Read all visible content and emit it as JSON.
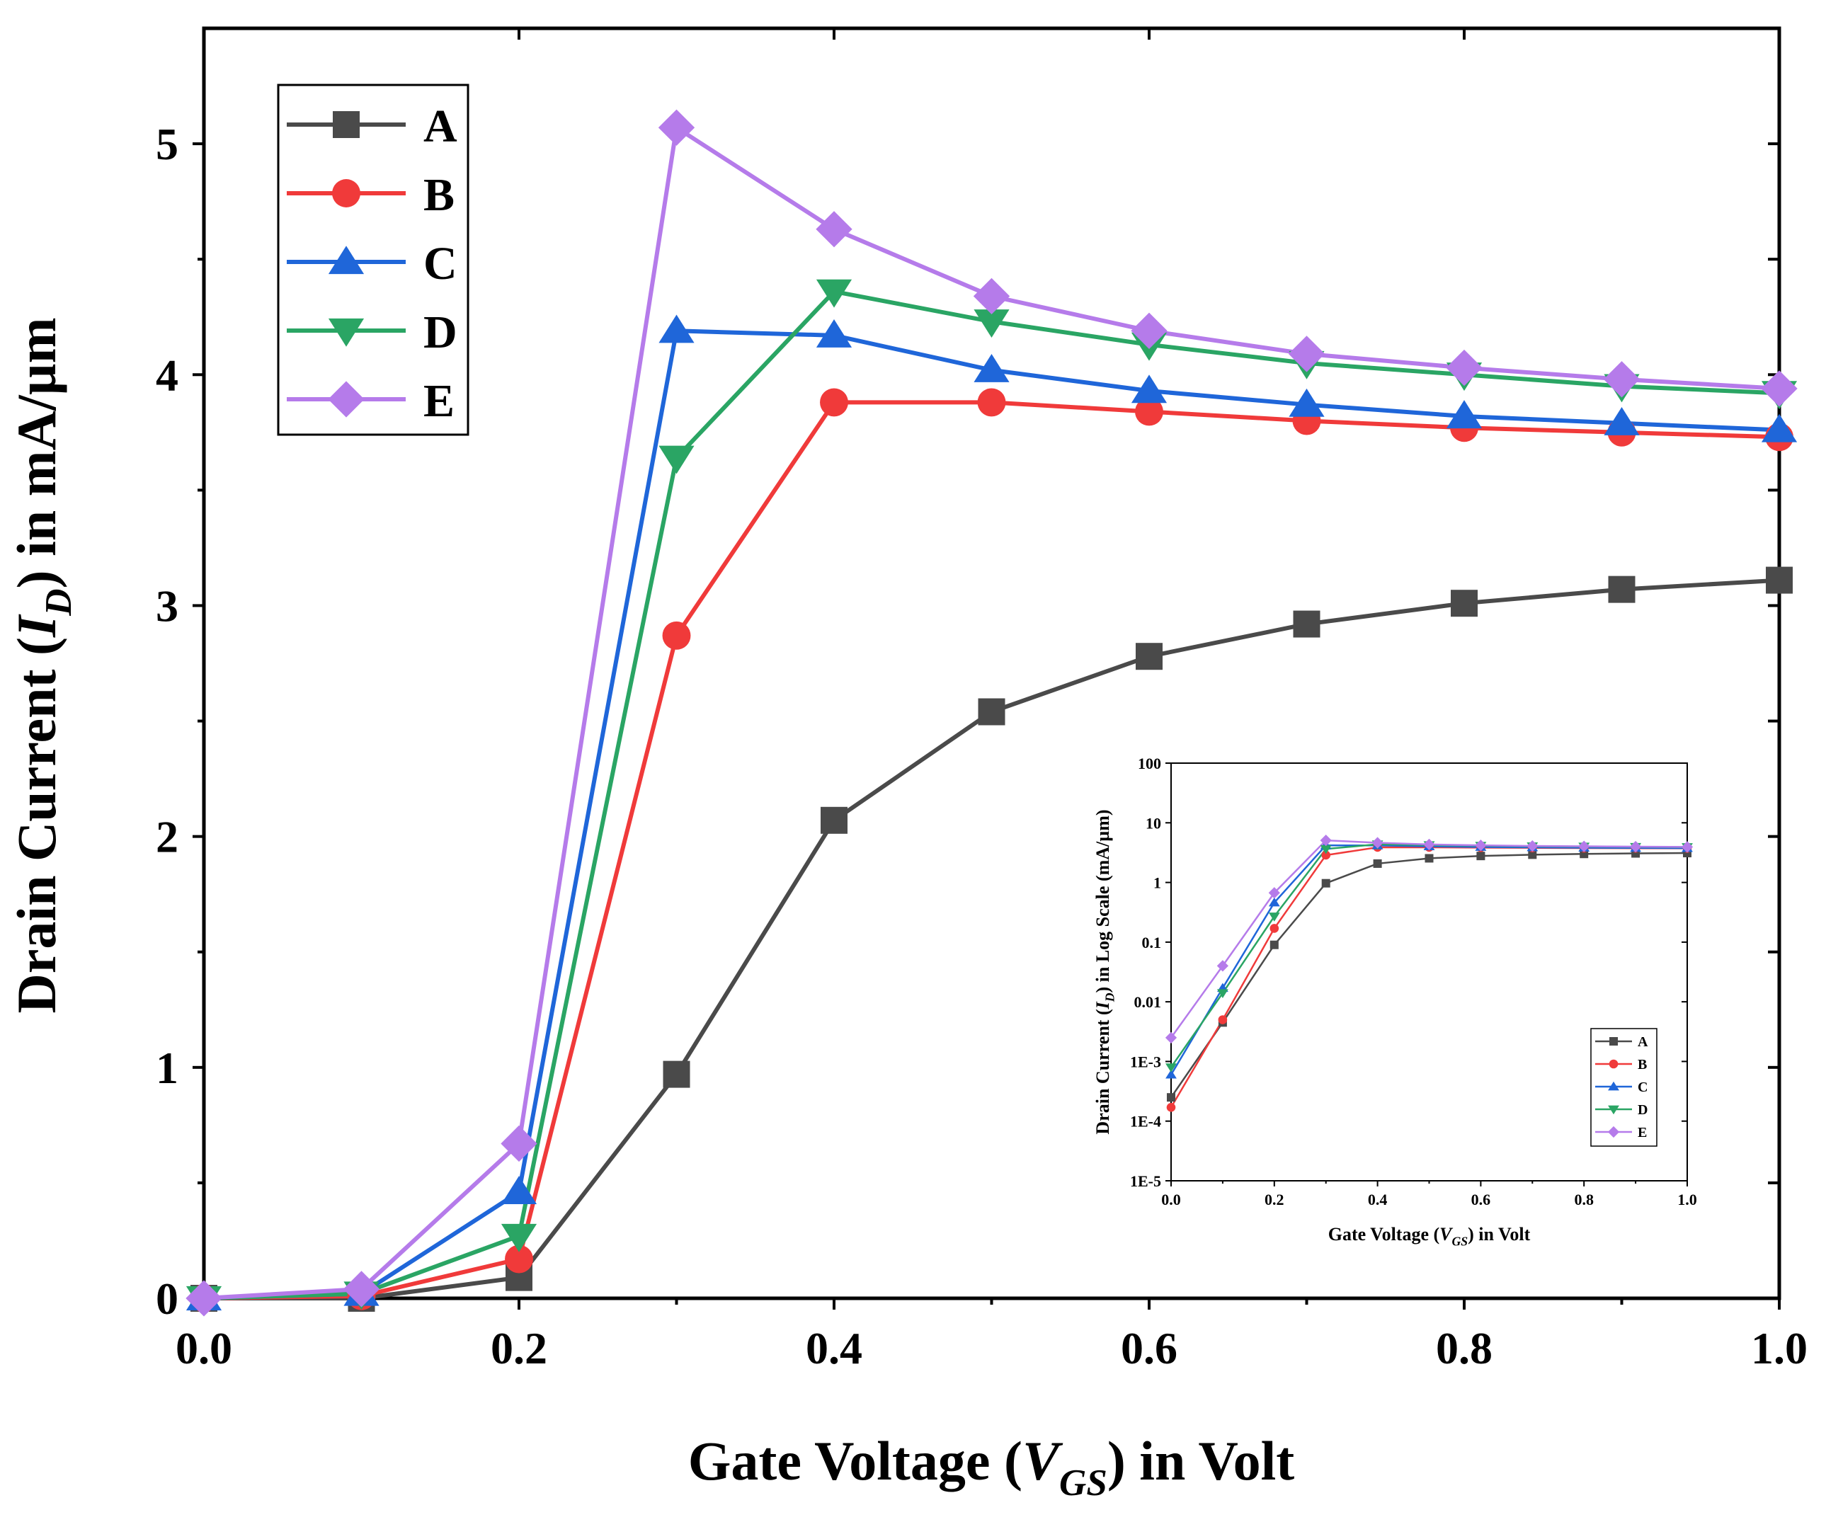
{
  "chart_data": [
    {
      "id": "main",
      "type": "line",
      "xlabel": "Gate Voltage (VGS) in Volt",
      "ylabel": "Drain Current (ID) in mA/µm",
      "xlim": [
        0.0,
        1.0
      ],
      "ylim": [
        0,
        5.5
      ],
      "xticks": [
        "0.0",
        "0.2",
        "0.4",
        "0.6",
        "0.8",
        "1.0"
      ],
      "yticks": [
        "0",
        "1",
        "2",
        "3",
        "4",
        "5"
      ],
      "x": [
        0.0,
        0.1,
        0.2,
        0.3,
        0.4,
        0.5,
        0.6,
        0.7,
        0.8,
        0.9,
        1.0
      ],
      "legend_position": "top-left",
      "series": [
        {
          "name": "A",
          "color": "#4a4a4a",
          "marker": "square",
          "values": [
            0.0,
            0.0,
            0.09,
            0.97,
            2.07,
            2.54,
            2.78,
            2.92,
            3.01,
            3.07,
            3.11
          ]
        },
        {
          "name": "B",
          "color": "#f03a3a",
          "marker": "circle",
          "values": [
            0.0,
            0.01,
            0.17,
            2.87,
            3.88,
            3.88,
            3.84,
            3.8,
            3.77,
            3.75,
            3.73
          ]
        },
        {
          "name": "C",
          "color": "#1f66d9",
          "marker": "triangle-up",
          "values": [
            0.0,
            0.02,
            0.46,
            4.19,
            4.17,
            4.02,
            3.93,
            3.87,
            3.82,
            3.79,
            3.76
          ]
        },
        {
          "name": "D",
          "color": "#2aa564",
          "marker": "triangle-down",
          "values": [
            0.0,
            0.02,
            0.27,
            3.64,
            4.36,
            4.23,
            4.13,
            4.05,
            4.0,
            3.95,
            3.92
          ]
        },
        {
          "name": "E",
          "color": "#b57bea",
          "marker": "diamond",
          "values": [
            0.0,
            0.04,
            0.67,
            5.07,
            4.63,
            4.34,
            4.19,
            4.09,
            4.03,
            3.98,
            3.94
          ]
        }
      ]
    },
    {
      "id": "inset",
      "type": "line",
      "xlabel": "Gate Voltage (VGS) in Volt",
      "ylabel": "Drain Current (ID) in Log Scale (mA/µm)",
      "yscale": "log",
      "xlim": [
        0.0,
        1.0
      ],
      "ylim": [
        1e-05,
        100
      ],
      "xticks": [
        "0.0",
        "0.2",
        "0.4",
        "0.6",
        "0.8",
        "1.0"
      ],
      "yticks": [
        "1E-5",
        "1E-4",
        "1E-3",
        "0.01",
        "0.1",
        "1",
        "10",
        "100"
      ],
      "x": [
        0.0,
        0.1,
        0.2,
        0.3,
        0.4,
        0.5,
        0.6,
        0.7,
        0.8,
        0.9,
        1.0
      ],
      "legend_position": "bottom-right",
      "series": [
        {
          "name": "A",
          "color": "#4a4a4a",
          "marker": "square",
          "values": [
            0.00025,
            0.0045,
            0.09,
            0.97,
            2.07,
            2.54,
            2.78,
            2.92,
            3.01,
            3.07,
            3.11
          ]
        },
        {
          "name": "B",
          "color": "#f03a3a",
          "marker": "circle",
          "values": [
            0.00017,
            0.005,
            0.17,
            2.87,
            3.88,
            3.88,
            3.84,
            3.8,
            3.77,
            3.75,
            3.73
          ]
        },
        {
          "name": "C",
          "color": "#1f66d9",
          "marker": "triangle-up",
          "values": [
            0.0006,
            0.017,
            0.46,
            4.19,
            4.17,
            4.02,
            3.93,
            3.87,
            3.82,
            3.79,
            3.76
          ]
        },
        {
          "name": "D",
          "color": "#2aa564",
          "marker": "triangle-down",
          "values": [
            0.0008,
            0.014,
            0.27,
            3.64,
            4.36,
            4.23,
            4.13,
            4.05,
            4.0,
            3.95,
            3.92
          ]
        },
        {
          "name": "E",
          "color": "#b57bea",
          "marker": "diamond",
          "values": [
            0.0025,
            0.04,
            0.67,
            5.07,
            4.63,
            4.34,
            4.19,
            4.09,
            4.03,
            3.98,
            3.94
          ]
        }
      ]
    }
  ]
}
